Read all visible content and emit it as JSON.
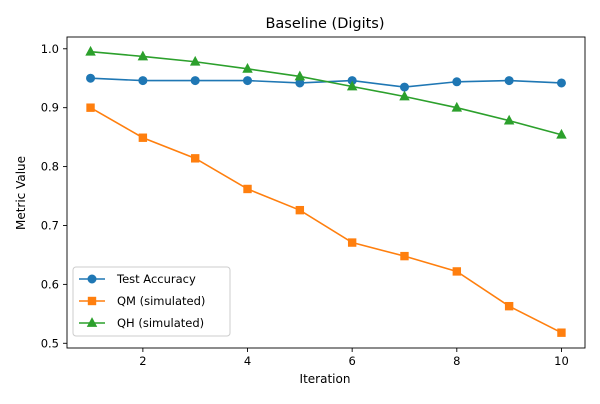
{
  "chart_data": {
    "type": "line",
    "title": "Baseline (Digits)",
    "xlabel": "Iteration",
    "ylabel": "Metric Value",
    "x": [
      1,
      2,
      3,
      4,
      5,
      6,
      7,
      8,
      9,
      10
    ],
    "xlim": [
      0.55,
      10.45
    ],
    "ylim": [
      0.492,
      1.02
    ],
    "xticks": [
      2,
      4,
      6,
      8,
      10
    ],
    "xtick_labels": [
      "2",
      "4",
      "6",
      "8",
      "10"
    ],
    "yticks": [
      0.5,
      0.6,
      0.7,
      0.8,
      0.9,
      1.0
    ],
    "ytick_labels": [
      "0.5",
      "0.6",
      "0.7",
      "0.8",
      "0.9",
      "1.0"
    ],
    "grid": false,
    "legend_position": "lower-left",
    "series": [
      {
        "name": "Test Accuracy",
        "marker": "circle",
        "color": "#1f77b4",
        "values": [
          0.95,
          0.946,
          0.946,
          0.946,
          0.942,
          0.946,
          0.935,
          0.944,
          0.946,
          0.942
        ]
      },
      {
        "name": "QM (simulated)",
        "marker": "square",
        "color": "#ff7f0e",
        "values": [
          0.9,
          0.849,
          0.814,
          0.762,
          0.726,
          0.671,
          0.648,
          0.622,
          0.563,
          0.518
        ]
      },
      {
        "name": "QH (simulated)",
        "marker": "triangle",
        "color": "#2ca02c",
        "values": [
          0.995,
          0.987,
          0.978,
          0.966,
          0.953,
          0.936,
          0.919,
          0.9,
          0.878,
          0.854
        ]
      }
    ]
  }
}
